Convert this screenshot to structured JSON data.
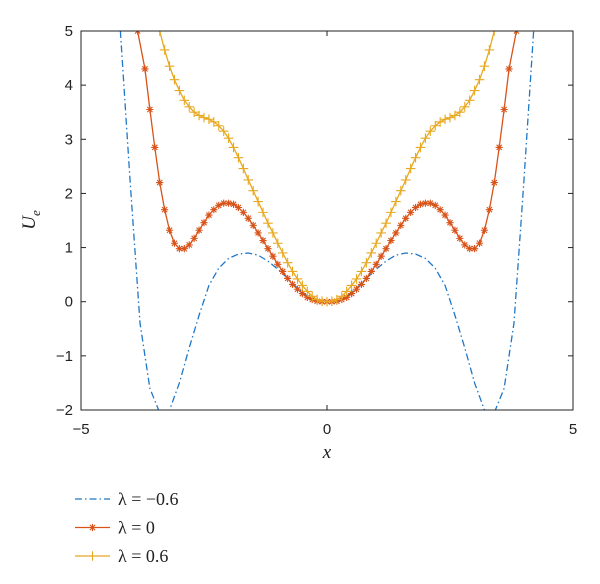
{
  "chart_data": {
    "type": "line",
    "xlabel": "x",
    "ylabel_main": "U",
    "ylabel_sub": "e",
    "xlim": [
      -5,
      5
    ],
    "ylim": [
      -2,
      5
    ],
    "xticks": [
      -5,
      0,
      5
    ],
    "yticks": [
      -2,
      -1,
      0,
      1,
      2,
      3,
      4,
      5
    ],
    "xtick_labels": [
      "−5",
      "0",
      "5"
    ],
    "ytick_labels": [
      "−2",
      "−1",
      "0",
      "1",
      "2",
      "3",
      "4",
      "5"
    ],
    "legend_position": "below",
    "series": [
      {
        "name": "λ = −0.6",
        "color": "#1f77c8",
        "line_style": "dash-dot",
        "marker": "none",
        "x": [
          -4.2,
          -4.0,
          -3.8,
          -3.6,
          -3.4,
          -3.3,
          -3.2,
          -3.0,
          -2.8,
          -2.6,
          -2.4,
          -2.2,
          -2.0,
          -1.8,
          -1.6,
          -1.4,
          -1.2,
          -1.0,
          -0.8,
          -0.6,
          -0.4,
          -0.2,
          0.0,
          0.2,
          0.4,
          0.6,
          0.8,
          1.0,
          1.2,
          1.4,
          1.6,
          1.8,
          2.0,
          2.2,
          2.4,
          2.6,
          2.8,
          3.0,
          3.2,
          3.3,
          3.4,
          3.6,
          3.8,
          4.0,
          4.2
        ],
        "y": [
          5.0,
          2.2,
          -0.4,
          -1.6,
          -2.05,
          -2.1,
          -2.0,
          -1.5,
          -0.85,
          -0.25,
          0.3,
          0.62,
          0.8,
          0.88,
          0.9,
          0.86,
          0.75,
          0.6,
          0.43,
          0.25,
          0.1,
          0.02,
          0.0,
          0.02,
          0.1,
          0.25,
          0.43,
          0.6,
          0.75,
          0.86,
          0.9,
          0.88,
          0.8,
          0.62,
          0.3,
          -0.25,
          -0.85,
          -1.5,
          -2.0,
          -2.1,
          -2.05,
          -1.6,
          -0.4,
          2.2,
          5.0
        ]
      },
      {
        "name": "λ = 0",
        "color": "#d95319",
        "line_style": "solid",
        "marker": "star",
        "x": [
          -3.85,
          -3.7,
          -3.6,
          -3.5,
          -3.4,
          -3.3,
          -3.2,
          -3.1,
          -3.0,
          -2.9,
          -2.8,
          -2.7,
          -2.6,
          -2.5,
          -2.4,
          -2.3,
          -2.2,
          -2.1,
          -2.0,
          -1.9,
          -1.8,
          -1.7,
          -1.6,
          -1.5,
          -1.4,
          -1.3,
          -1.2,
          -1.1,
          -1.0,
          -0.9,
          -0.8,
          -0.7,
          -0.6,
          -0.5,
          -0.4,
          -0.3,
          -0.2,
          -0.1,
          0.0,
          0.1,
          0.2,
          0.3,
          0.4,
          0.5,
          0.6,
          0.7,
          0.8,
          0.9,
          1.0,
          1.1,
          1.2,
          1.3,
          1.4,
          1.5,
          1.6,
          1.7,
          1.8,
          1.9,
          2.0,
          2.1,
          2.2,
          2.3,
          2.4,
          2.5,
          2.6,
          2.7,
          2.8,
          2.9,
          3.0,
          3.1,
          3.2,
          3.3,
          3.4,
          3.5,
          3.6,
          3.7,
          3.85
        ],
        "y": [
          5.0,
          4.3,
          3.55,
          2.85,
          2.2,
          1.7,
          1.32,
          1.08,
          0.98,
          0.98,
          1.05,
          1.17,
          1.32,
          1.46,
          1.6,
          1.7,
          1.78,
          1.82,
          1.82,
          1.8,
          1.74,
          1.65,
          1.54,
          1.41,
          1.27,
          1.13,
          0.98,
          0.84,
          0.69,
          0.56,
          0.43,
          0.32,
          0.23,
          0.15,
          0.08,
          0.04,
          0.01,
          0.0,
          0.0,
          0.0,
          0.01,
          0.04,
          0.08,
          0.15,
          0.23,
          0.32,
          0.43,
          0.56,
          0.69,
          0.84,
          0.98,
          1.13,
          1.27,
          1.41,
          1.54,
          1.65,
          1.74,
          1.8,
          1.82,
          1.82,
          1.78,
          1.7,
          1.6,
          1.46,
          1.32,
          1.17,
          1.05,
          0.98,
          0.98,
          1.08,
          1.32,
          1.7,
          2.2,
          2.85,
          3.55,
          4.3,
          5.0
        ]
      },
      {
        "name": "λ = 0.6",
        "color": "#e8a820",
        "line_style": "solid",
        "marker": "plus",
        "x": [
          -3.4,
          -3.3,
          -3.2,
          -3.1,
          -3.0,
          -2.9,
          -2.8,
          -2.7,
          -2.6,
          -2.5,
          -2.4,
          -2.3,
          -2.2,
          -2.1,
          -2.0,
          -1.9,
          -1.8,
          -1.7,
          -1.6,
          -1.5,
          -1.4,
          -1.3,
          -1.2,
          -1.1,
          -1.0,
          -0.9,
          -0.8,
          -0.7,
          -0.6,
          -0.5,
          -0.4,
          -0.3,
          -0.2,
          -0.1,
          0.0,
          0.1,
          0.2,
          0.3,
          0.4,
          0.5,
          0.6,
          0.7,
          0.8,
          0.9,
          1.0,
          1.1,
          1.2,
          1.3,
          1.4,
          1.5,
          1.6,
          1.7,
          1.8,
          1.9,
          2.0,
          2.1,
          2.2,
          2.3,
          2.4,
          2.5,
          2.6,
          2.7,
          2.8,
          2.9,
          3.0,
          3.1,
          3.2,
          3.3,
          3.4
        ],
        "y": [
          5.0,
          4.65,
          4.35,
          4.1,
          3.9,
          3.72,
          3.6,
          3.5,
          3.44,
          3.4,
          3.37,
          3.32,
          3.25,
          3.15,
          3.02,
          2.85,
          2.66,
          2.46,
          2.25,
          2.05,
          1.85,
          1.65,
          1.45,
          1.27,
          1.08,
          0.9,
          0.72,
          0.56,
          0.42,
          0.3,
          0.19,
          0.1,
          0.04,
          0.01,
          0.0,
          0.01,
          0.04,
          0.1,
          0.19,
          0.3,
          0.42,
          0.56,
          0.72,
          0.9,
          1.08,
          1.27,
          1.45,
          1.65,
          1.85,
          2.05,
          2.25,
          2.46,
          2.66,
          2.85,
          3.02,
          3.15,
          3.25,
          3.32,
          3.37,
          3.4,
          3.44,
          3.5,
          3.6,
          3.72,
          3.9,
          4.1,
          4.35,
          4.65,
          5.0
        ]
      }
    ]
  }
}
